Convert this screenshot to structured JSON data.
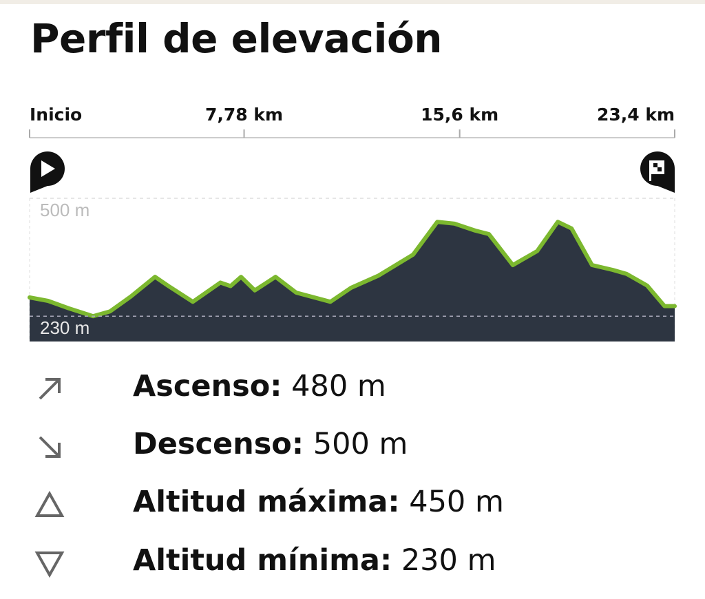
{
  "title": "Perfil de elevación",
  "chart_data": {
    "type": "area",
    "x": [
      0,
      0.67,
      1.42,
      2.3,
      2.92,
      3.67,
      4.55,
      5.04,
      5.92,
      6.92,
      7.29,
      7.67,
      8.17,
      8.92,
      9.67,
      10.91,
      11.66,
      12.66,
      13.91,
      14.79,
      15.41,
      16.16,
      16.66,
      17.53,
      18.41,
      19.16,
      19.66,
      20.4,
      21.15,
      21.65,
      22.4,
      23.03,
      23.4
    ],
    "values": [
      273,
      265,
      248,
      230,
      241,
      275,
      320,
      299,
      263,
      307,
      299,
      320,
      289,
      320,
      284,
      263,
      295,
      323,
      371,
      446,
      442,
      426,
      418,
      347,
      379,
      446,
      431,
      347,
      336,
      327,
      300,
      253,
      253
    ],
    "xlim": [
      0,
      23.4
    ],
    "xticks": [
      {
        "value": 0,
        "label": "Inicio"
      },
      {
        "value": 7.78,
        "label": "7,78 km"
      },
      {
        "value": 15.6,
        "label": "15,6 km"
      },
      {
        "value": 23.4,
        "label": "23,4 km"
      }
    ],
    "ylim": [
      172,
      500
    ],
    "yticks": [
      {
        "value": 230,
        "label": "230 m"
      },
      {
        "value": 500,
        "label": "500 m"
      }
    ],
    "color": "#7cb82f",
    "fill": "#2d3541",
    "grid": true
  },
  "stats": [
    {
      "label": "Ascenso:",
      "value": "480 m"
    },
    {
      "label": "Descenso:",
      "value": "500 m"
    },
    {
      "label": "Altitud máxima:",
      "value": "450 m"
    },
    {
      "label": "Altitud mínima:",
      "value": "230 m"
    }
  ]
}
